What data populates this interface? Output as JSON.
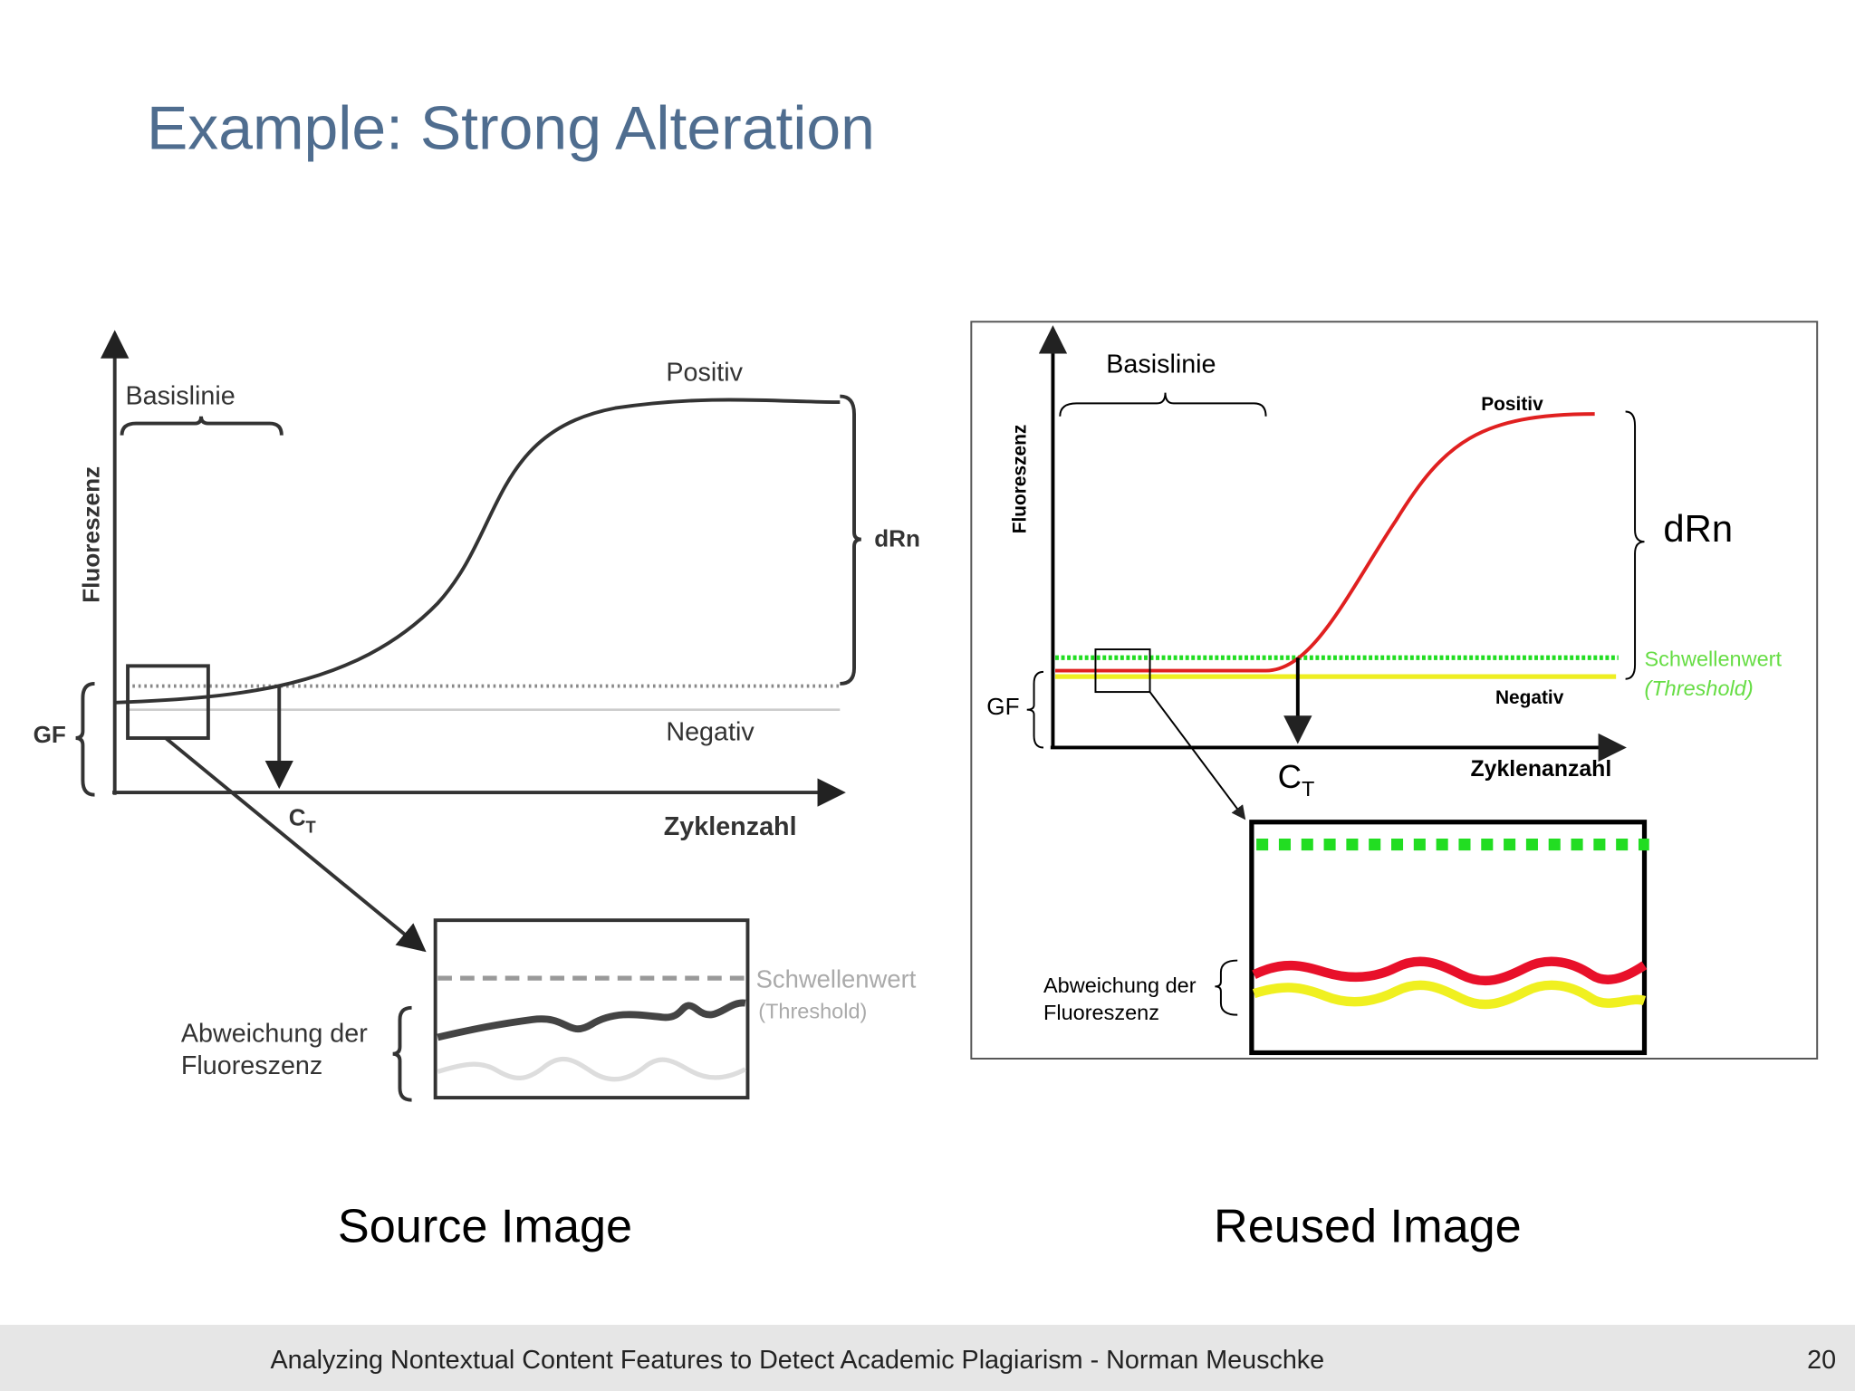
{
  "slide": {
    "title": "Example: Strong Alteration",
    "source": {
      "caption": "Source Image",
      "baseline": "Basislinie",
      "positive": "Positiv",
      "drn": "dRn",
      "y_label": "Fluoreszenz",
      "gf": "GF",
      "negative": "Negativ",
      "ct": {
        "main": "C",
        "sub": "T"
      },
      "x_label": "Zyklenzahl",
      "threshold": "Schwellenwert",
      "threshold_en": "(Threshold)",
      "deviation": [
        "Abweichung der",
        "Fluoreszenz"
      ]
    },
    "reused": {
      "caption": "Reused Image",
      "baseline": "Basislinie",
      "positive": "Positiv",
      "drn": "dRn",
      "y_label": "Fluoreszenz",
      "gf": "GF",
      "negative": "Negativ",
      "ct": {
        "main": "C",
        "sub": "T"
      },
      "x_label": "Zyklenanzahl",
      "threshold": "Schwellenwert",
      "threshold_en": "(Threshold)",
      "deviation": [
        "Abweichung der",
        "Fluoreszenz"
      ]
    },
    "footer": "Analyzing Nontextual Content Features to Detect Academic Plagiarism - Norman Meuschke",
    "page": "20"
  }
}
